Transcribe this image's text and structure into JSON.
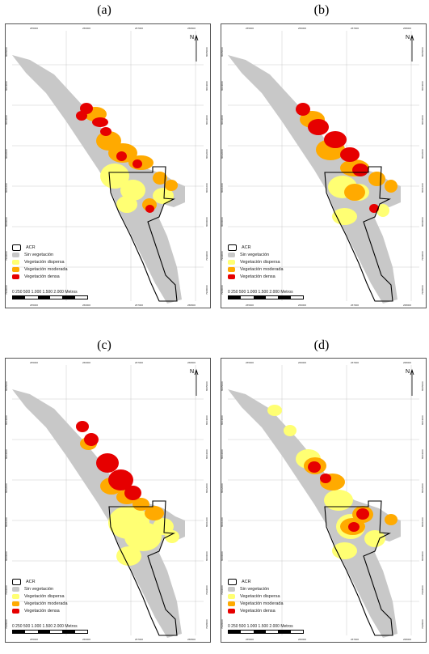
{
  "panels": [
    {
      "label": "(a)"
    },
    {
      "label": "(b)"
    },
    {
      "label": "(c)"
    },
    {
      "label": "(d)"
    }
  ],
  "map": {
    "north_label": "N",
    "top_ticks": [
      "265000",
      "266000",
      "267000",
      "268000"
    ],
    "bottom_ticks": [
      "265000",
      "266000",
      "267000",
      "268000"
    ],
    "left_ticks": [
      "8005000",
      "8004000",
      "8003000",
      "8002000",
      "8001000",
      "8000000",
      "7999000",
      "7998000"
    ],
    "right_ticks": [
      "8005000",
      "8004000",
      "8003000",
      "8002000",
      "8001000",
      "8000000",
      "7999000",
      "7998000"
    ]
  },
  "legend": {
    "items": [
      {
        "label": "ACR",
        "color": "#ffffff",
        "icon": "outline-polygon"
      },
      {
        "label": "Sin vegetación",
        "color": "#c8c8c8",
        "icon": "blob-gray"
      },
      {
        "label": "Vegetación dispersa",
        "color": "#ffff73",
        "icon": "blob-yellow"
      },
      {
        "label": "Vegetación moderada",
        "color": "#ffaa00",
        "icon": "blob-orange"
      },
      {
        "label": "Vegetación densa",
        "color": "#e60000",
        "icon": "blob-red"
      }
    ]
  },
  "scale": {
    "ticks": [
      "0",
      "250 500",
      "1.000",
      "1.500",
      "2.000"
    ],
    "unit": "Metros"
  }
}
